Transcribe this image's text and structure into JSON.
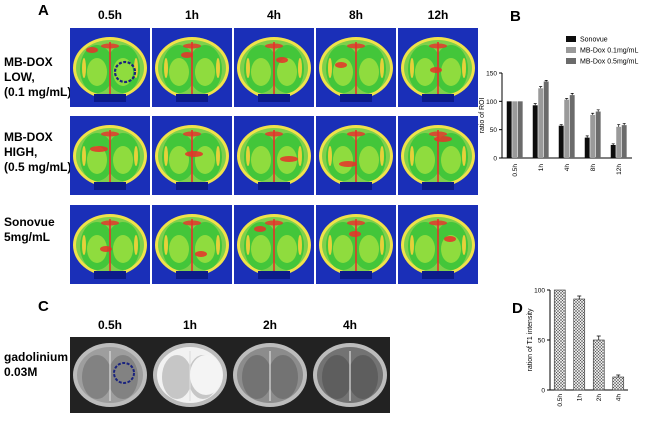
{
  "panelA": {
    "letter": "A",
    "times": [
      "0.5h",
      "1h",
      "4h",
      "8h",
      "12h"
    ],
    "rows": [
      {
        "label": "MB-DOX\nLOW,\n(0.1 mg/mL)"
      },
      {
        "label": "MB-DOX\nHIGH,\n(0.5 mg/mL)"
      },
      {
        "label": "Sonovue\n5mg/mL"
      }
    ]
  },
  "panelB": {
    "letter": "B"
  },
  "panelC": {
    "letter": "C",
    "times": [
      "0.5h",
      "1h",
      "2h",
      "4h"
    ],
    "row_label": "gadolinium\n0.03M"
  },
  "panelD": {
    "letter": "D"
  },
  "colors": {
    "roi_circle": "#1a237e",
    "heat_bg": "#1a2fb8",
    "heat_mid": "#43c63a",
    "heat_hot": "#e8302a"
  },
  "chart_data": [
    {
      "type": "bar",
      "categories": [
        "0.5h",
        "1h",
        "4h",
        "8h",
        "12h"
      ],
      "ylabel": "ratio of ROI",
      "ylim": [
        0,
        150
      ],
      "yticks": [
        0,
        50,
        100,
        150
      ],
      "legend_position": "top-right",
      "series": [
        {
          "name": "Sonovue",
          "color": "#0d0d0d",
          "values": [
            100,
            93,
            57,
            36,
            23
          ],
          "errors": [
            0,
            3,
            2,
            3,
            2
          ]
        },
        {
          "name": "MB-Dox 0.1mg/mL",
          "color": "#9a9a9a",
          "values": [
            100,
            123,
            103,
            76,
            55
          ],
          "errors": [
            0,
            3,
            2,
            3,
            4
          ]
        },
        {
          "name": "MB-Dox 0.5mg/mL",
          "color": "#6b6b6b",
          "values": [
            100,
            135,
            111,
            82,
            58
          ],
          "errors": [
            0,
            2,
            3,
            3,
            3
          ]
        }
      ]
    },
    {
      "type": "bar",
      "categories": [
        "0.5h",
        "1h",
        "2h",
        "4h"
      ],
      "ylabel": "ration of T1 intensity",
      "ylim": [
        0,
        100
      ],
      "yticks": [
        0,
        50,
        100
      ],
      "series": [
        {
          "values": [
            100,
            91,
            50,
            13
          ],
          "errors": [
            0,
            3,
            4,
            2
          ]
        }
      ]
    }
  ]
}
